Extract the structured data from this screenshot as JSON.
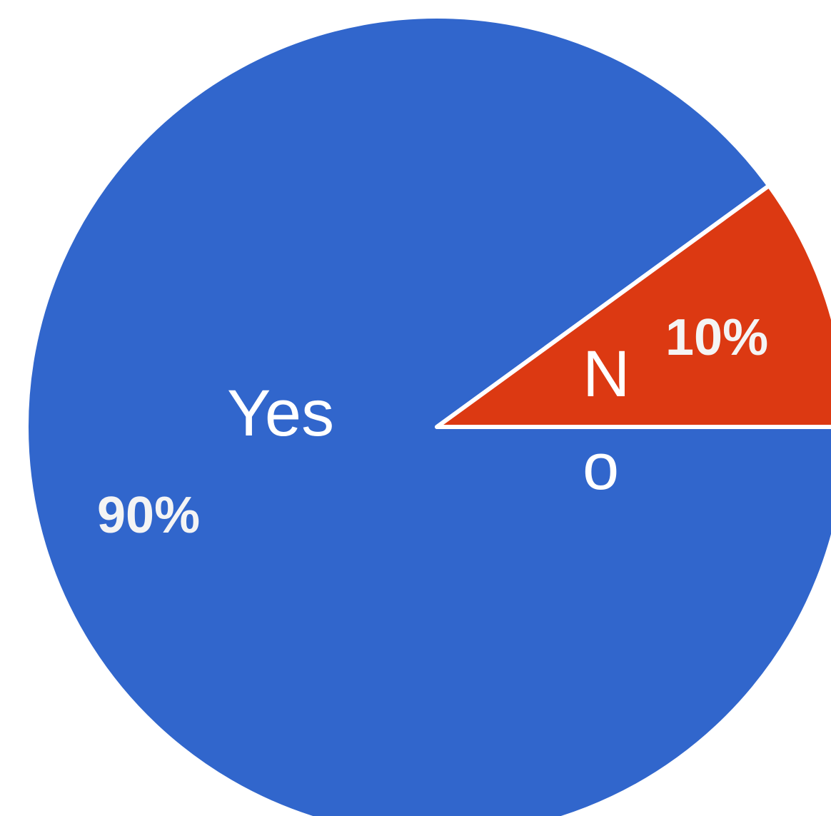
{
  "chart_data": {
    "type": "pie",
    "slices": [
      {
        "label": "Yes",
        "value": 90,
        "percent_label": "90%",
        "color": "#3166cc"
      },
      {
        "label": "No",
        "value": 10,
        "percent_label": "10%",
        "color": "#dc3912"
      }
    ],
    "slice_border_color": "#ffffff"
  }
}
